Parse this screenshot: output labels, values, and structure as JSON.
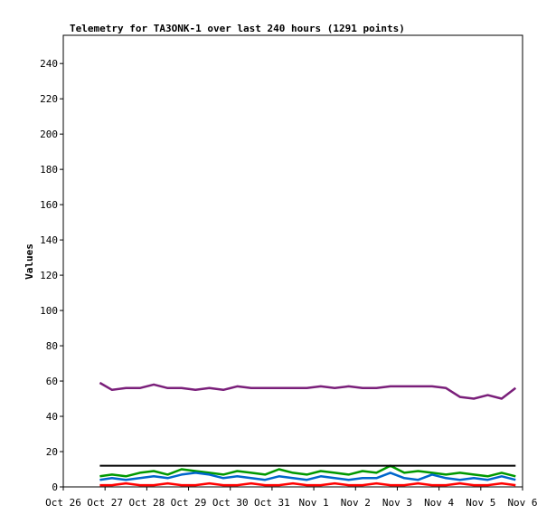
{
  "chart_data": {
    "type": "line",
    "title": "Telemetry for TA3ONK-1 over last 240 hours (1291 points)",
    "xlabel": "",
    "ylabel": "Values",
    "ylim": [
      0,
      256
    ],
    "yticks": [
      0,
      20,
      40,
      60,
      80,
      100,
      120,
      140,
      160,
      180,
      200,
      220,
      240
    ],
    "xlim": [
      "Oct 26",
      "Nov 6"
    ],
    "x_tick_labels": [
      "Oct 26",
      "Oct 27",
      "Oct 28",
      "Oct 29",
      "Oct 30",
      "Oct 31",
      "Nov 1",
      "Nov 2",
      "Nov 3",
      "Nov 4",
      "Nov 5",
      "Nov 6"
    ],
    "grid": false,
    "legend": "none",
    "series": [
      {
        "color": "#7a1f7a",
        "x": [
          "Oct 26 21:00",
          "Oct 27 04:00",
          "Oct 27 12:00",
          "Oct 27 20:00",
          "Oct 28 04:00",
          "Oct 28 12:00",
          "Oct 28 20:00",
          "Oct 29 04:00",
          "Oct 29 12:00",
          "Oct 29 20:00",
          "Oct 30 04:00",
          "Oct 30 12:00",
          "Oct 30 20:00",
          "Oct 31 04:00",
          "Oct 31 12:00",
          "Oct 31 20:00",
          "Nov 1 04:00",
          "Nov 1 12:00",
          "Nov 1 20:00",
          "Nov 2 04:00",
          "Nov 2 12:00",
          "Nov 2 20:00",
          "Nov 3 04:00",
          "Nov 3 12:00",
          "Nov 3 20:00",
          "Nov 4 04:00",
          "Nov 4 12:00",
          "Nov 4 20:00",
          "Nov 5 04:00",
          "Nov 5 12:00",
          "Nov 5 20:00"
        ],
        "y": [
          59,
          55,
          56,
          56,
          58,
          56,
          56,
          55,
          56,
          55,
          57,
          56,
          56,
          56,
          56,
          56,
          57,
          56,
          57,
          56,
          56,
          57,
          57,
          57,
          57,
          56,
          51,
          50,
          52,
          50,
          56
        ]
      },
      {
        "color": "#009900",
        "x": [
          "Oct 26 21:00",
          "Oct 27 04:00",
          "Oct 27 12:00",
          "Oct 27 20:00",
          "Oct 28 04:00",
          "Oct 28 12:00",
          "Oct 28 20:00",
          "Oct 29 04:00",
          "Oct 29 12:00",
          "Oct 29 20:00",
          "Oct 30 04:00",
          "Oct 30 12:00",
          "Oct 30 20:00",
          "Oct 31 04:00",
          "Oct 31 12:00",
          "Oct 31 20:00",
          "Nov 1 04:00",
          "Nov 1 12:00",
          "Nov 1 20:00",
          "Nov 2 04:00",
          "Nov 2 12:00",
          "Nov 2 20:00",
          "Nov 3 04:00",
          "Nov 3 12:00",
          "Nov 3 20:00",
          "Nov 4 04:00",
          "Nov 4 12:00",
          "Nov 4 20:00",
          "Nov 5 04:00",
          "Nov 5 12:00",
          "Nov 5 20:00"
        ],
        "y": [
          6,
          7,
          6,
          8,
          9,
          7,
          10,
          9,
          8,
          7,
          9,
          8,
          7,
          10,
          8,
          7,
          9,
          8,
          7,
          9,
          8,
          12,
          8,
          9,
          8,
          7,
          8,
          7,
          6,
          8,
          6
        ]
      },
      {
        "color": "#0066cc",
        "x": [
          "Oct 26 21:00",
          "Oct 27 04:00",
          "Oct 27 12:00",
          "Oct 27 20:00",
          "Oct 28 04:00",
          "Oct 28 12:00",
          "Oct 28 20:00",
          "Oct 29 04:00",
          "Oct 29 12:00",
          "Oct 29 20:00",
          "Oct 30 04:00",
          "Oct 30 12:00",
          "Oct 30 20:00",
          "Oct 31 04:00",
          "Oct 31 12:00",
          "Oct 31 20:00",
          "Nov 1 04:00",
          "Nov 1 12:00",
          "Nov 1 20:00",
          "Nov 2 04:00",
          "Nov 2 12:00",
          "Nov 2 20:00",
          "Nov 3 04:00",
          "Nov 3 12:00",
          "Nov 3 20:00",
          "Nov 4 04:00",
          "Nov 4 12:00",
          "Nov 4 20:00",
          "Nov 5 04:00",
          "Nov 5 12:00",
          "Nov 5 20:00"
        ],
        "y": [
          4,
          5,
          4,
          5,
          6,
          5,
          7,
          8,
          7,
          5,
          6,
          5,
          4,
          6,
          5,
          4,
          6,
          5,
          4,
          5,
          5,
          8,
          5,
          4,
          7,
          5,
          4,
          5,
          4,
          6,
          4
        ]
      },
      {
        "color": "#ff0000",
        "x": [
          "Oct 26 21:00",
          "Oct 27 04:00",
          "Oct 27 12:00",
          "Oct 27 20:00",
          "Oct 28 04:00",
          "Oct 28 12:00",
          "Oct 28 20:00",
          "Oct 29 04:00",
          "Oct 29 12:00",
          "Oct 29 20:00",
          "Oct 30 04:00",
          "Oct 30 12:00",
          "Oct 30 20:00",
          "Oct 31 04:00",
          "Oct 31 12:00",
          "Oct 31 20:00",
          "Nov 1 04:00",
          "Nov 1 12:00",
          "Nov 1 20:00",
          "Nov 2 04:00",
          "Nov 2 12:00",
          "Nov 2 20:00",
          "Nov 3 04:00",
          "Nov 3 12:00",
          "Nov 3 20:00",
          "Nov 4 04:00",
          "Nov 4 12:00",
          "Nov 4 20:00",
          "Nov 5 04:00",
          "Nov 5 12:00",
          "Nov 5 20:00"
        ],
        "y": [
          1,
          1,
          2,
          1,
          1,
          2,
          1,
          1,
          2,
          1,
          1,
          2,
          1,
          1,
          2,
          1,
          1,
          2,
          1,
          1,
          2,
          1,
          1,
          2,
          1,
          1,
          2,
          1,
          1,
          2,
          1
        ]
      },
      {
        "color": "#000000",
        "x": [
          "Oct 26 21:00",
          "Nov 5 20:00"
        ],
        "y": [
          12,
          12
        ]
      }
    ]
  }
}
